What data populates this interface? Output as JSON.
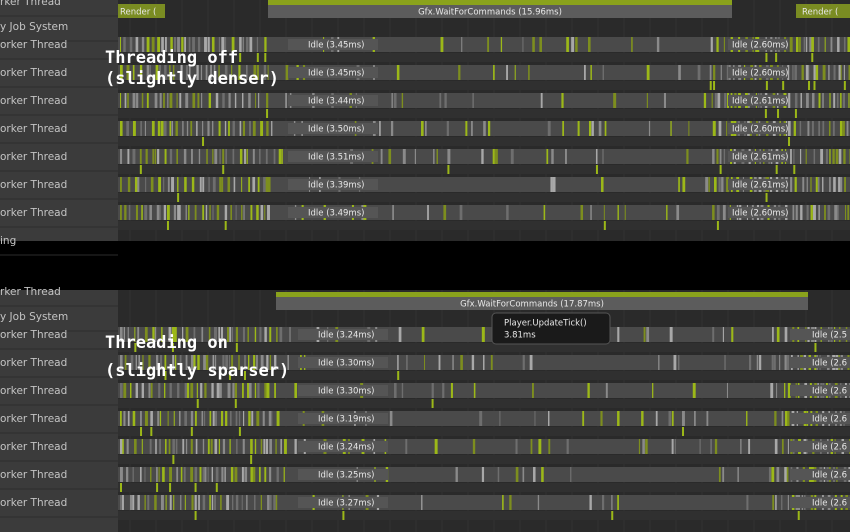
{
  "panels": [
    {
      "sidebar": [
        "rker Thread",
        "y Job System",
        "orker Thread",
        "orker Thread",
        "orker Thread",
        "orker Thread",
        "orker Thread",
        "orker Thread",
        "orker Thread",
        "ing"
      ],
      "side_bars": [
        "Render (",
        "Render ("
      ],
      "main_bar": "Gfx.WaitForCommands (15.96ms)",
      "rows": [
        {
          "idle": "Idle (3.45ms)",
          "idle_right": "Idle (2.60ms)"
        },
        {
          "idle": "Idle (3.45ms)",
          "idle_right": "Idle (2.60ms)"
        },
        {
          "idle": "Idle (3.44ms)",
          "idle_right": "Idle (2.61ms)"
        },
        {
          "idle": "Idle (3.50ms)",
          "idle_right": "Idle (2.60ms)"
        },
        {
          "idle": "Idle (3.51ms)",
          "idle_right": "Idle (2.61ms)"
        },
        {
          "idle": "Idle (3.39ms)",
          "idle_right": "Idle (2.61ms)"
        },
        {
          "idle": "Idle (3.49ms)",
          "idle_right": "Idle (2.60ms)"
        }
      ],
      "caption": [
        "Threading off",
        "(slightly denser)"
      ]
    },
    {
      "sidebar": [
        "rker Thread",
        "y Job System",
        "orker Thread",
        "orker Thread",
        "orker Thread",
        "orker Thread",
        "orker Thread",
        "orker Thread",
        "orker Thread"
      ],
      "main_bar": "Gfx.WaitForCommands (17.87ms)",
      "rows": [
        {
          "idle": "Idle (3.24ms)",
          "idle_right": "Idle (2.5"
        },
        {
          "idle": "Idle (3.30ms)",
          "idle_right": "Idle (2.6"
        },
        {
          "idle": "Idle (3.30ms)",
          "idle_right": "Idle (2.6"
        },
        {
          "idle": "Idle (3.19ms)",
          "idle_right": "Idle (2.6"
        },
        {
          "idle": "Idle (3.24ms)",
          "idle_right": "Idle (2.6"
        },
        {
          "idle": "Idle (3.25ms)",
          "idle_right": "Idle (2.6"
        },
        {
          "idle": "Idle (3.27ms)",
          "idle_right": "Idle (2.6"
        }
      ],
      "tooltip": {
        "title": "Player.UpdateTick()",
        "time": "3.81ms"
      },
      "caption": [
        "Threading on",
        "(slightly sparser)"
      ]
    }
  ]
}
